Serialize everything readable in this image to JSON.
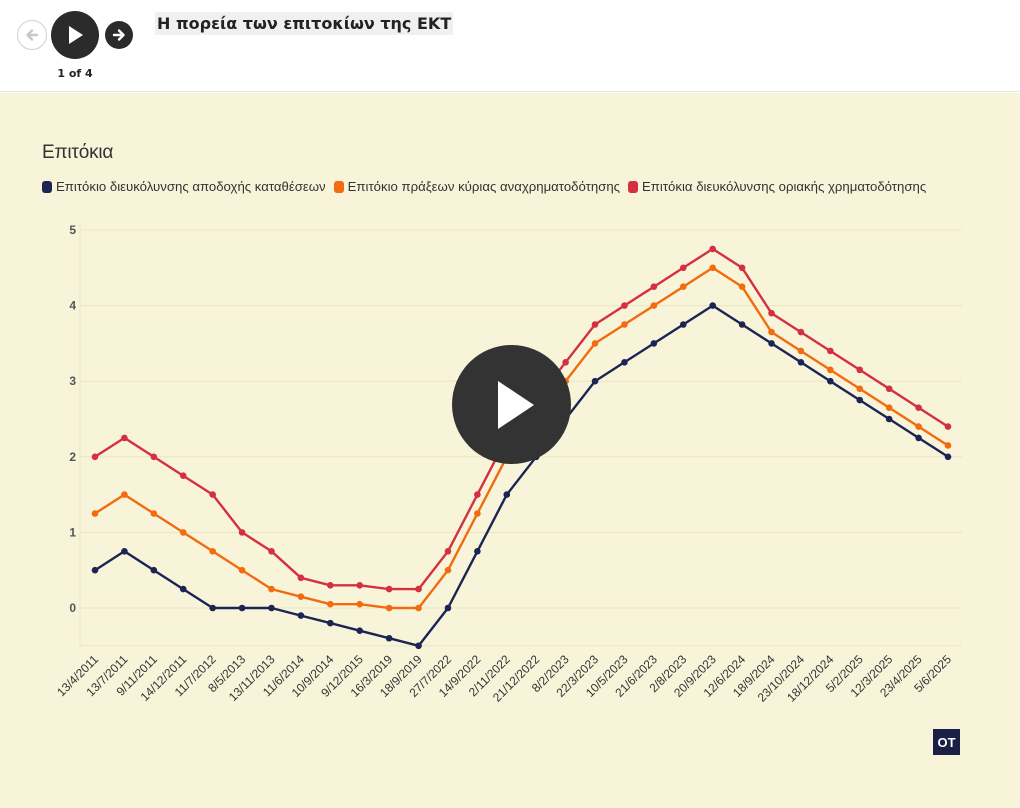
{
  "topbar": {
    "title": "Η πορεία των επιτοκίων της ΕΚΤ",
    "counter": "1 of 4"
  },
  "colors": {
    "background": "#f8f4da",
    "series1": "#1b2453",
    "series2": "#f26b0f",
    "series3": "#d43040",
    "logo_bg": "#1a1f45"
  },
  "icons": {
    "prev": "arrow-left-icon",
    "play": "play-icon",
    "next": "arrow-right-icon",
    "overlay": "play-icon"
  },
  "logo": {
    "text": "OT"
  },
  "chart_data": {
    "type": "line",
    "title": "Επιτόκια",
    "xlabel": "",
    "ylabel": "",
    "ylim": [
      -0.5,
      5
    ],
    "yticks": [
      0,
      1,
      2,
      3,
      4,
      5
    ],
    "grid": true,
    "legend_position": "top-left",
    "categories": [
      "13/4/2011",
      "13/7/2011",
      "9/11/2011",
      "14/12/2011",
      "11/7/2012",
      "8/5/2013",
      "13/11/2013",
      "11/6/2014",
      "10/9/2014",
      "9/12/2015",
      "16/3/2019",
      "18/9/2019",
      "27/7/2022",
      "14/9/2022",
      "2/11/2022",
      "21/12/2022",
      "8/2/2023",
      "22/3/2023",
      "10/5/2023",
      "21/6/2023",
      "2/8/2023",
      "20/9/2023",
      "12/6/2024",
      "18/9/2024",
      "23/10/2024",
      "18/12/2024",
      "5/2/2025",
      "12/3/2025",
      "23/4/2025",
      "5/6/2025"
    ],
    "series": [
      {
        "name": "Επιτόκιο διευκόλυνσης αποδοχής καταθέσεων",
        "color": "#1b2453",
        "values": [
          0.5,
          0.75,
          0.5,
          0.25,
          0,
          0,
          0,
          -0.1,
          -0.2,
          -0.3,
          -0.4,
          -0.5,
          0,
          0.75,
          1.5,
          2,
          2.5,
          3,
          3.25,
          3.5,
          3.75,
          4,
          3.75,
          3.5,
          3.25,
          3,
          2.75,
          2.5,
          2.25,
          2
        ]
      },
      {
        "name": "Επιτόκιο πράξεων κύριας αναχρηματοδότησης",
        "color": "#f26b0f",
        "values": [
          1.25,
          1.5,
          1.25,
          1,
          0.75,
          0.5,
          0.25,
          0.15,
          0.05,
          0.05,
          0,
          0,
          0.5,
          1.25,
          2,
          2.5,
          3,
          3.5,
          3.75,
          4,
          4.25,
          4.5,
          4.25,
          3.65,
          3.4,
          3.15,
          2.9,
          2.65,
          2.4,
          2.15
        ]
      },
      {
        "name": "Επιτόκια διευκόλυνσης οριακής χρηματοδότησης",
        "color": "#d43040",
        "values": [
          2,
          2.25,
          2,
          1.75,
          1.5,
          1,
          0.75,
          0.4,
          0.3,
          0.3,
          0.25,
          0.25,
          0.75,
          1.5,
          2.25,
          2.75,
          3.25,
          3.75,
          4,
          4.25,
          4.5,
          4.75,
          4.5,
          3.9,
          3.65,
          3.4,
          3.15,
          2.9,
          2.65,
          2.4
        ]
      }
    ]
  }
}
